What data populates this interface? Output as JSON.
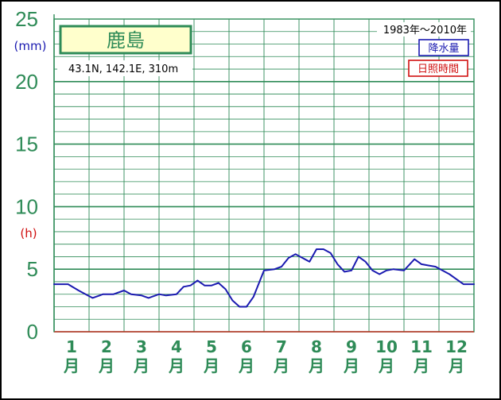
{
  "chart_data": {
    "type": "line",
    "title": "鹿島",
    "location": "43.1N,  142.1E,  310m",
    "period": "1983年〜2010年",
    "legend": [
      {
        "label": "降水量",
        "color": "#1a1ab0"
      },
      {
        "label": "日照時間",
        "color": "#d01010"
      }
    ],
    "y_unit_primary": "(mm)",
    "y_unit_secondary": "(h)",
    "yticks": [
      "0",
      "5",
      "10",
      "15",
      "20",
      "25"
    ],
    "ylim": [
      0,
      25
    ],
    "xlim": [
      0.5,
      12.5
    ],
    "months": [
      {
        "num": "1",
        "suffix": "月"
      },
      {
        "num": "2",
        "suffix": "月"
      },
      {
        "num": "3",
        "suffix": "月"
      },
      {
        "num": "4",
        "suffix": "月"
      },
      {
        "num": "5",
        "suffix": "月"
      },
      {
        "num": "6",
        "suffix": "月"
      },
      {
        "num": "7",
        "suffix": "月"
      },
      {
        "num": "8",
        "suffix": "月"
      },
      {
        "num": "9",
        "suffix": "月"
      },
      {
        "num": "10",
        "suffix": "月"
      },
      {
        "num": "11",
        "suffix": "月"
      },
      {
        "num": "12",
        "suffix": "月"
      }
    ],
    "series": [
      {
        "name": "降水量",
        "color": "#1a1ab0",
        "x": [
          0.5,
          0.9,
          1.2,
          1.4,
          1.6,
          1.9,
          2.2,
          2.5,
          2.7,
          3.0,
          3.2,
          3.5,
          3.7,
          4.0,
          4.2,
          4.4,
          4.6,
          4.8,
          5.0,
          5.2,
          5.4,
          5.6,
          5.8,
          6.0,
          6.2,
          6.5,
          6.8,
          7.0,
          7.2,
          7.4,
          7.6,
          7.8,
          8.0,
          8.2,
          8.4,
          8.6,
          8.8,
          9.0,
          9.2,
          9.4,
          9.6,
          9.8,
          10.0,
          10.2,
          10.5,
          10.8,
          11.0,
          11.2,
          11.4,
          11.6,
          11.8,
          12.0,
          12.2,
          12.5
        ],
        "values": [
          3.8,
          3.8,
          3.3,
          3.0,
          2.7,
          3.0,
          3.0,
          3.3,
          3.0,
          2.9,
          2.7,
          3.0,
          2.9,
          3.0,
          3.6,
          3.7,
          4.1,
          3.7,
          3.7,
          3.9,
          3.4,
          2.5,
          2.0,
          2.0,
          2.8,
          4.9,
          5.0,
          5.2,
          5.9,
          6.2,
          5.9,
          5.6,
          6.6,
          6.6,
          6.3,
          5.4,
          4.8,
          4.9,
          6.0,
          5.6,
          4.9,
          4.6,
          4.9,
          5.0,
          4.9,
          5.8,
          5.4,
          5.3,
          5.2,
          4.9,
          4.6,
          4.2,
          3.8,
          3.8
        ]
      }
    ],
    "grid": true
  }
}
